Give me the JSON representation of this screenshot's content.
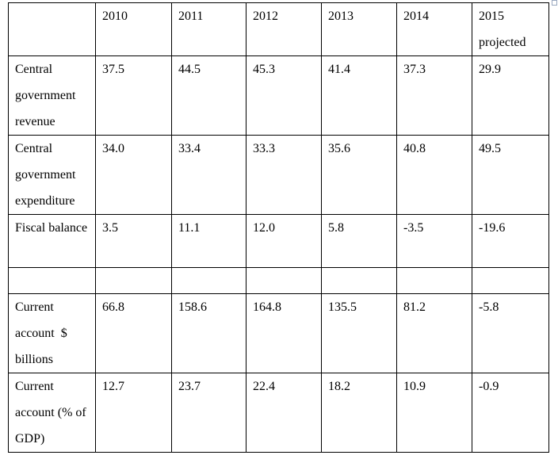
{
  "table": {
    "headers": [
      "",
      "2010",
      "2011",
      "2012",
      "2013",
      "2014",
      "2015 projected"
    ],
    "rows": [
      {
        "label": "Central government revenue",
        "values": [
          "37.5",
          "44.5",
          "45.3",
          "41.4",
          "37.3",
          "29.9"
        ]
      },
      {
        "label": "Central government expenditure",
        "values": [
          "34.0",
          "33.4",
          "33.3",
          "35.6",
          "40.8",
          "49.5"
        ]
      },
      {
        "label": "Fiscal balance",
        "values": [
          "3.5",
          "11.1",
          "12.0",
          "5.8",
          "-3.5",
          "-19.6"
        ]
      },
      {
        "label": "",
        "values": [
          "",
          "",
          "",
          "",
          "",
          ""
        ]
      },
      {
        "label": "Current account  $ billions",
        "values": [
          "66.8",
          "158.6",
          "164.8",
          "135.5",
          "81.2",
          "-5.8"
        ]
      },
      {
        "label": "Current account (% of GDP)",
        "values": [
          "12.7",
          "23.7",
          "22.4",
          "18.2",
          "10.9",
          "-0.9"
        ]
      }
    ]
  }
}
